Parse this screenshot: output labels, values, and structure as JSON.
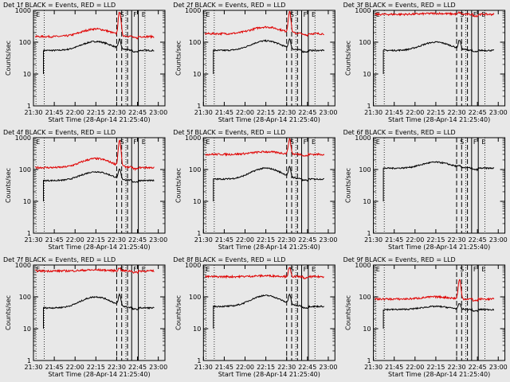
{
  "figure": {
    "xlabel": "Start Time (28-Apr-14 21:25:40)",
    "ylabel": "Counts/sec",
    "xlim": [
      21.5,
      23.08
    ],
    "ylim": [
      1,
      1000
    ],
    "x_tick_labels": [
      "21:30",
      "21:45",
      "22:00",
      "22:15",
      "22:30",
      "22:45",
      "23:00"
    ],
    "x_ticks": [
      21.5,
      21.75,
      22.0,
      22.25,
      22.5,
      22.75,
      23.0
    ],
    "y_tick_labels": [
      "1",
      "10",
      "100",
      "1000"
    ],
    "y_ticks": [
      1,
      10,
      100,
      1000
    ],
    "colors": {
      "events": "#000000",
      "lld": "#e00000",
      "background": "#e8e8e8"
    },
    "markers": {
      "dotted": [
        21.53,
        21.63,
        22.61,
        22.84
      ],
      "dashed": [
        22.5,
        22.56,
        22.63
      ],
      "solid": [
        22.68,
        22.76
      ],
      "labels": [
        {
          "text": "E",
          "x": 21.52
        },
        {
          "text": "S",
          "x": 22.53
        },
        {
          "text": "F",
          "x": 22.69
        },
        {
          "text": "E",
          "x": 22.79
        }
      ]
    }
  },
  "chart_data": [
    {
      "type": "line",
      "title": "Det 1f BLACK = Events, RED = LLD",
      "series": [
        {
          "name": "Events",
          "color": "#000000",
          "base": 55,
          "peak": 105,
          "spike": 115
        },
        {
          "name": "LLD",
          "color": "#e00000",
          "base": 150,
          "peak": 260,
          "spike": 900
        }
      ]
    },
    {
      "type": "line",
      "title": "Det 2f BLACK = Events, RED = LLD",
      "series": [
        {
          "name": "Events",
          "color": "#000000",
          "base": 55,
          "peak": 110,
          "spike": 115
        },
        {
          "name": "LLD",
          "color": "#e00000",
          "base": 185,
          "peak": 300,
          "spike": 900
        }
      ]
    },
    {
      "type": "line",
      "title": "Det 3f BLACK = Events, RED = LLD",
      "series": [
        {
          "name": "Events",
          "color": "#000000",
          "base": 55,
          "peak": 100,
          "spike": 110
        },
        {
          "name": "LLD",
          "color": "#e00000",
          "base": 750,
          "peak": 800,
          "spike": 850
        }
      ]
    },
    {
      "type": "line",
      "title": "Det 4f BLACK = Events, RED = LLD",
      "series": [
        {
          "name": "Events",
          "color": "#000000",
          "base": 45,
          "peak": 85,
          "spike": 95
        },
        {
          "name": "LLD",
          "color": "#e00000",
          "base": 115,
          "peak": 220,
          "spike": 800
        }
      ]
    },
    {
      "type": "line",
      "title": "Det 5f BLACK = Events, RED = LLD",
      "series": [
        {
          "name": "Events",
          "color": "#000000",
          "base": 50,
          "peak": 110,
          "spike": 110
        },
        {
          "name": "LLD",
          "color": "#e00000",
          "base": 300,
          "peak": 360,
          "spike": 900
        }
      ]
    },
    {
      "type": "line",
      "title": "Det 6f BLACK = Events, RED = LLD",
      "series": [
        {
          "name": "Events",
          "color": "#000000",
          "base": 110,
          "peak": 170,
          "spike": 120
        }
      ]
    },
    {
      "type": "line",
      "title": "Det 7f BLACK = Events, RED = LLD",
      "series": [
        {
          "name": "Events",
          "color": "#000000",
          "base": 45,
          "peak": 100,
          "spike": 110
        },
        {
          "name": "LLD",
          "color": "#e00000",
          "base": 650,
          "peak": 700,
          "spike": 800
        }
      ]
    },
    {
      "type": "line",
      "title": "Det 8f BLACK = Events, RED = LLD",
      "series": [
        {
          "name": "Events",
          "color": "#000000",
          "base": 50,
          "peak": 110,
          "spike": 110
        },
        {
          "name": "LLD",
          "color": "#e00000",
          "base": 430,
          "peak": 460,
          "spike": 800
        }
      ]
    },
    {
      "type": "line",
      "title": "Det 9f BLACK = Events, RED = LLD",
      "series": [
        {
          "name": "Events",
          "color": "#000000",
          "base": 40,
          "peak": 50,
          "spike": 60
        },
        {
          "name": "LLD",
          "color": "#e00000",
          "base": 85,
          "peak": 100,
          "spike": 350
        }
      ]
    }
  ]
}
